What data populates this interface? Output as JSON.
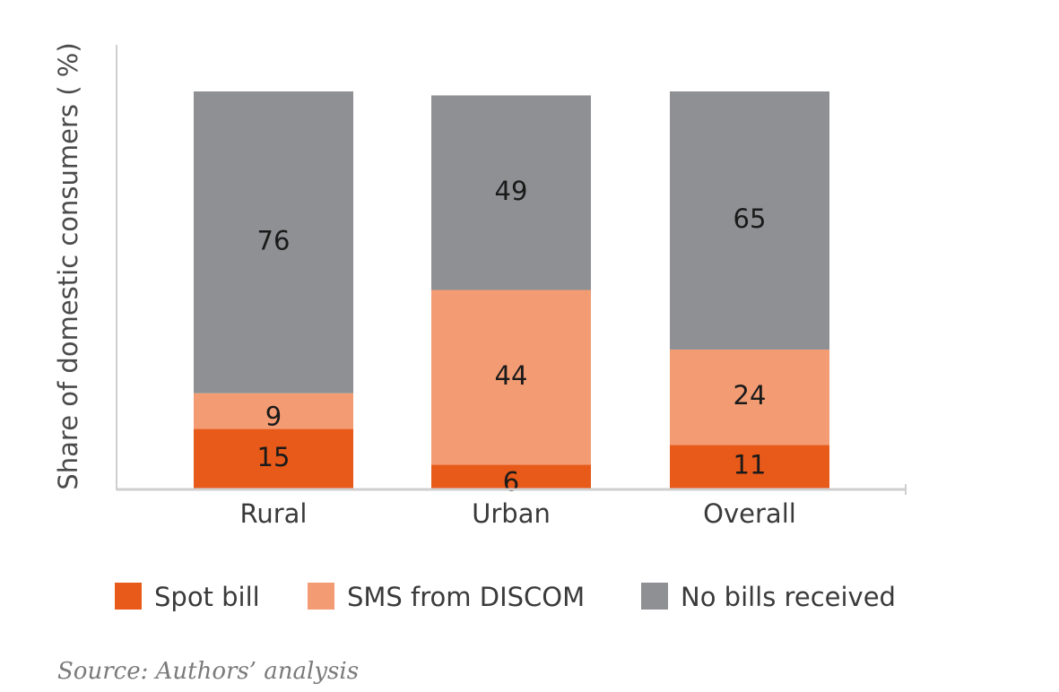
{
  "chart_data": {
    "type": "bar",
    "stacked": true,
    "categories": [
      "Rural",
      "Urban",
      "Overall"
    ],
    "series": [
      {
        "name": "Spot bill",
        "values": [
          15,
          6,
          11
        ],
        "color": "#E85A1A"
      },
      {
        "name": "SMS from DISCOM",
        "values": [
          9,
          44,
          24
        ],
        "color": "#F39C74"
      },
      {
        "name": "No bills received",
        "values": [
          76,
          49,
          65
        ],
        "color": "#8E9093"
      }
    ],
    "ylabel": "Share of domestic consumers ( %)",
    "xlabel": "",
    "ylim": [
      0,
      100
    ],
    "grid": false,
    "legend_position": "bottom"
  },
  "source": "Source: Authors’ analysis"
}
